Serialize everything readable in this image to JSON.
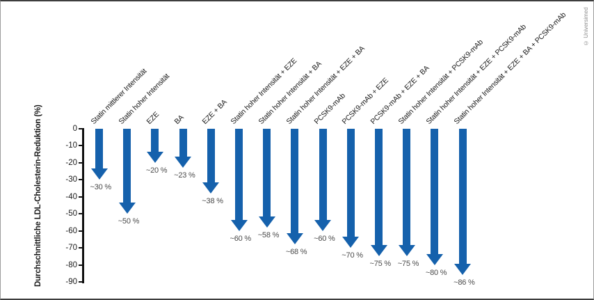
{
  "frame": {
    "copyright": "© Universimed"
  },
  "chart_data": {
    "type": "bar",
    "subtype": "downward-arrows",
    "title": "",
    "xlabel": "",
    "ylabel": "Durchschnittliche LDL-Cholesterin-Reduktion (%)",
    "ylim": [
      0,
      -90
    ],
    "yticks": [
      0,
      -10,
      -20,
      -30,
      -40,
      -50,
      -60,
      -70,
      -80,
      -90
    ],
    "grid": false,
    "legend": false,
    "arrow_color": "#1561ac",
    "categories": [
      "Statin mittlerer Intensität",
      "Statin hoher Intensität",
      "EZE",
      "BA",
      "EZE + BA",
      "Statin hoher Intensität + EZE",
      "Statin hoher Intensität + BA",
      "Statin hoher Intensität + EZE + BA",
      "PCSK9-mAb",
      "PCSK9-mAb + EZE",
      "PCSK9-mAb + EZE + BA",
      "Statin hoher Intensität + PCSK9-mAb",
      "Statin hoher Intensität + EZE + PCSK9-mAb",
      "Statin hoher Intensität + EZE + BA + PCSK9-mAb"
    ],
    "values": [
      -30,
      -50,
      -20,
      -23,
      -38,
      -60,
      -58,
      -68,
      -60,
      -70,
      -75,
      -75,
      -80,
      -86
    ],
    "value_labels": [
      "~30 %",
      "~50 %",
      "~20 %",
      "~23 %",
      "~38 %",
      "~60 %",
      "~58 %",
      "~68 %",
      "~60 %",
      "~70 %",
      "~75 %",
      "~75 %",
      "~80 %",
      "~86 %"
    ]
  }
}
